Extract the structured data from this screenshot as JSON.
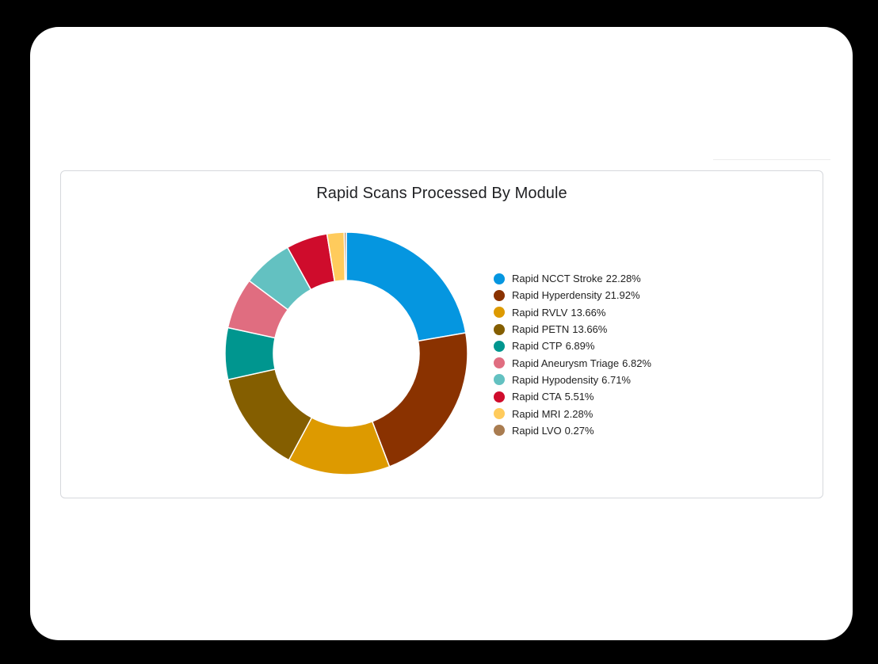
{
  "chart_data": {
    "type": "pie",
    "subtype": "donut",
    "title": "Rapid Scans Processed By Module",
    "legend_position": "right",
    "categories": [
      "Rapid NCCT Stroke",
      "Rapid Hyperdensity",
      "Rapid RVLV",
      "Rapid PETN",
      "Rapid CTP",
      "Rapid Aneurysm Triage",
      "Rapid Hypodensity",
      "Rapid CTA",
      "Rapid MRI",
      "Rapid LVO"
    ],
    "values": [
      22.28,
      21.92,
      13.66,
      13.66,
      6.89,
      6.82,
      6.71,
      5.51,
      2.28,
      0.27
    ],
    "unit": "%",
    "colors": [
      "#0596e0",
      "#8a3200",
      "#dd9a00",
      "#845e00",
      "#00968f",
      "#e06d80",
      "#63c1c1",
      "#cf0c2c",
      "#ffcb5c",
      "#a97c50"
    ]
  },
  "card": {
    "title": "Rapid Scans Processed By Module"
  },
  "legend": [
    {
      "label": "Rapid NCCT Stroke",
      "pct": "22.28%"
    },
    {
      "label": "Rapid Hyperdensity",
      "pct": "21.92%"
    },
    {
      "label": "Rapid RVLV",
      "pct": "13.66%"
    },
    {
      "label": "Rapid PETN",
      "pct": "13.66%"
    },
    {
      "label": "Rapid CTP",
      "pct": "6.89%"
    },
    {
      "label": "Rapid Aneurysm Triage",
      "pct": "6.82%"
    },
    {
      "label": "Rapid Hypodensity",
      "pct": "6.71%"
    },
    {
      "label": "Rapid CTA",
      "pct": "5.51%"
    },
    {
      "label": "Rapid MRI",
      "pct": "2.28%"
    },
    {
      "label": "Rapid LVO",
      "pct": "0.27%"
    }
  ]
}
